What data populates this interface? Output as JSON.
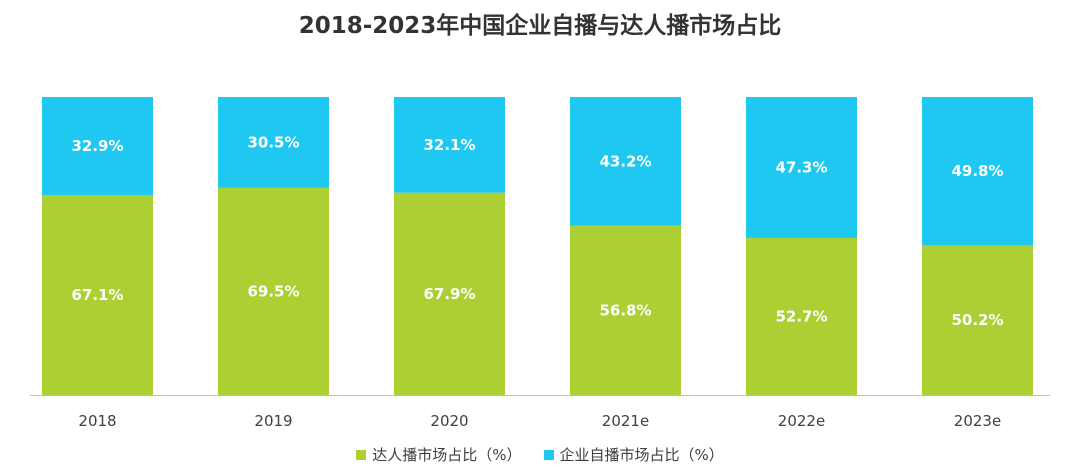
{
  "chart_data": {
    "type": "bar",
    "stacked": true,
    "title": "2018-2023年中国企业自播与达人播市场占比",
    "categories": [
      "2018",
      "2019",
      "2020",
      "2021e",
      "2022e",
      "2023e"
    ],
    "series": [
      {
        "name": "达人播市场占比（%）",
        "color": "#acd034",
        "values": [
          67.1,
          69.5,
          67.9,
          56.8,
          52.7,
          50.2
        ],
        "labels": [
          "67.1%",
          "69.5%",
          "67.9%",
          "56.8%",
          "52.7%",
          "50.2%"
        ]
      },
      {
        "name": "企业自播市场占比（%）",
        "color": "#1fc8f0",
        "values": [
          32.9,
          30.5,
          32.1,
          43.2,
          47.3,
          49.8
        ],
        "labels": [
          "32.9%",
          "30.5%",
          "32.1%",
          "43.2%",
          "47.3%",
          "49.8%"
        ]
      }
    ],
    "ylim": [
      0,
      100
    ],
    "grid": false,
    "legend_position": "bottom"
  }
}
